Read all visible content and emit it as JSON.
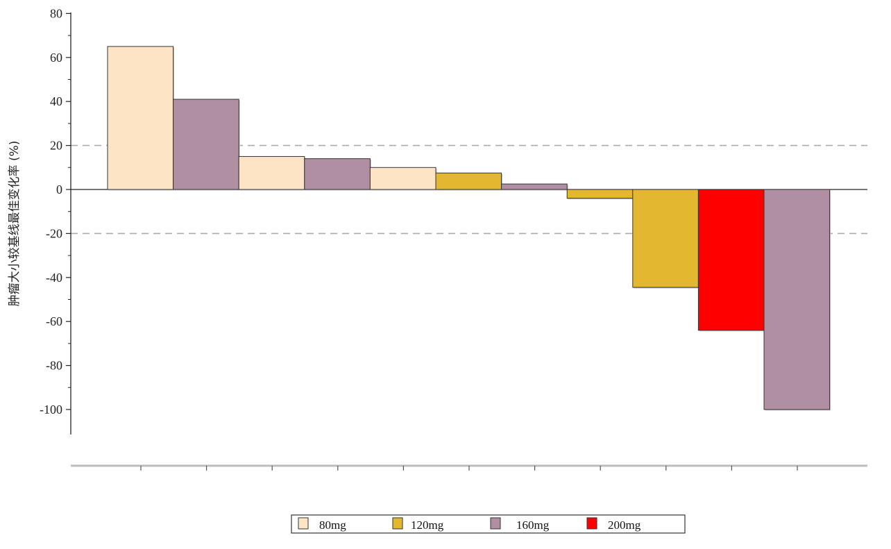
{
  "chart_data": {
    "type": "bar",
    "ylabel": "肿瘤大小较基线最佳变化率 (%)",
    "ylim": [
      -110,
      80
    ],
    "yticks": [
      80,
      60,
      40,
      20,
      0,
      -20,
      -40,
      -60,
      -80,
      -100
    ],
    "reference_lines": [
      20,
      -20
    ],
    "series": [
      {
        "name": "80mg",
        "color": "#FDE4C4"
      },
      {
        "name": "120mg",
        "color": "#E3B830"
      },
      {
        "name": "160mg",
        "color": "#B18FA2"
      },
      {
        "name": "200mg",
        "color": "#FF0000"
      }
    ],
    "bars": [
      {
        "series": "80mg",
        "value": 65
      },
      {
        "series": "160mg",
        "value": 41
      },
      {
        "series": "80mg",
        "value": 15
      },
      {
        "series": "160mg",
        "value": 14
      },
      {
        "series": "80mg",
        "value": 10
      },
      {
        "series": "120mg",
        "value": 7.5
      },
      {
        "series": "160mg",
        "value": 2.5
      },
      {
        "series": "120mg",
        "value": -4
      },
      {
        "series": "120mg",
        "value": -44.5
      },
      {
        "series": "200mg",
        "value": -64
      },
      {
        "series": "160mg",
        "value": -100
      }
    ],
    "legend_position": "bottom-center"
  }
}
